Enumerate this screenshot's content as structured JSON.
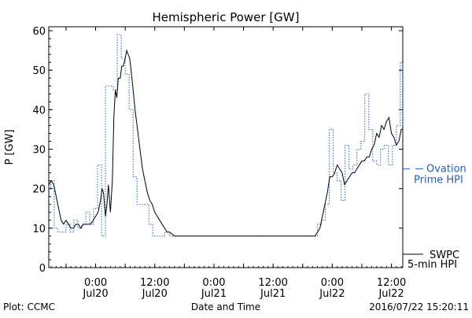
{
  "chart_data": {
    "type": "line",
    "title": "Hemispheric Power [GW]",
    "ylabel": "P [GW]",
    "xlabel": "Date and Time",
    "x_unit": "hours from 2016-07-19 00:00 UTC",
    "xlim": [
      -9.5,
      62.3
    ],
    "ylim": [
      0,
      61
    ],
    "y_ticks": [
      0,
      10,
      20,
      30,
      40,
      50,
      60
    ],
    "x_ticks": [
      {
        "x": 0,
        "time": "0:00",
        "date": "Jul20"
      },
      {
        "x": 12,
        "time": "12:00",
        "date": "Jul20"
      },
      {
        "x": 24,
        "time": "0:00",
        "date": "Jul21"
      },
      {
        "x": 36,
        "time": "12:00",
        "date": "Jul21"
      },
      {
        "x": 48,
        "time": "0:00",
        "date": "Jul22"
      },
      {
        "x": 60,
        "time": "12:00",
        "date": "Jul22"
      }
    ],
    "grid": false,
    "legend_position": "right",
    "series": [
      {
        "name": "Ovation Prime HPI",
        "legend_lines": [
          "Ovation",
          "Prime HPI"
        ],
        "style": "dotted-step",
        "color": "#2060c0",
        "marker_value": 25,
        "x": [
          -9.5,
          -9.1,
          -8.4,
          -7.6,
          -6.8,
          -6.0,
          -5.2,
          -4.4,
          -3.6,
          -2.8,
          -2.0,
          -1.2,
          -0.4,
          0.4,
          1.2,
          2.0,
          2.8,
          3.6,
          4.4,
          5.2,
          6.0,
          6.8,
          7.6,
          8.4,
          9.2,
          10.0,
          10.8,
          11.6,
          12.4,
          13.2,
          14.0,
          15.0,
          16.0,
          20,
          30,
          40,
          44.2,
          45.0,
          45.8,
          46.6,
          47.4,
          48.2,
          49.0,
          49.8,
          50.6,
          51.4,
          52.2,
          53.0,
          53.8,
          54.6,
          55.4,
          56.2,
          57.0,
          57.8,
          58.6,
          59.4,
          60.2,
          61.0,
          61.8,
          62.3
        ],
        "y": [
          20,
          22,
          10,
          9,
          9,
          11,
          9,
          12,
          10,
          11,
          14,
          11,
          15,
          26,
          8,
          46,
          46,
          45,
          59,
          53,
          49,
          40,
          23,
          16,
          16,
          16,
          11,
          8,
          8,
          8,
          9,
          8,
          8,
          8,
          8,
          8,
          8,
          11,
          12,
          16,
          35,
          24,
          22,
          17,
          31,
          25,
          26,
          30,
          32,
          44,
          35,
          27,
          26,
          30,
          31,
          26,
          31,
          36,
          52,
          36
        ]
      },
      {
        "name": "SWPC 5-min HPI",
        "legend_lines": [
          "SWPC",
          "5-min HPI"
        ],
        "style": "solid",
        "color": "#000000",
        "x": [
          -9.5,
          -9.0,
          -8.5,
          -8.0,
          -7.5,
          -7.0,
          -6.5,
          -6.0,
          -5.5,
          -5.0,
          -4.5,
          -4.0,
          -3.5,
          -3.0,
          -2.5,
          -2.0,
          -1.5,
          -1.0,
          -0.5,
          0.0,
          0.5,
          1.0,
          1.3,
          1.6,
          2.0,
          2.3,
          2.6,
          3.0,
          3.4,
          3.7,
          4.0,
          4.3,
          4.6,
          5.0,
          5.3,
          5.6,
          6.0,
          6.3,
          6.6,
          6.9,
          7.2,
          7.6,
          8.0,
          8.5,
          9.0,
          9.5,
          10.0,
          10.5,
          11.0,
          11.5,
          12.0,
          12.5,
          13.0,
          13.5,
          14.0,
          14.5,
          15.0,
          16.0,
          20,
          25,
          30,
          35,
          40,
          44.0,
          44.5,
          45.0,
          45.5,
          46.0,
          46.5,
          47.0,
          47.5,
          48.0,
          48.5,
          49.0,
          49.5,
          50.0,
          50.5,
          51.0,
          51.5,
          52.0,
          52.5,
          53.0,
          53.5,
          54.0,
          54.5,
          55.0,
          55.5,
          56.0,
          56.5,
          57.0,
          57.5,
          58.0,
          58.5,
          59.0,
          59.5,
          60.0,
          60.5,
          61.0,
          61.5,
          62.0,
          62.3
        ],
        "y": [
          21,
          22,
          21,
          18,
          15,
          12,
          11,
          12,
          11,
          10,
          10,
          11,
          11,
          10,
          11,
          11,
          11,
          11,
          12,
          13,
          14,
          17,
          20,
          19,
          13,
          16,
          21,
          14,
          22,
          38,
          45,
          43,
          48,
          48,
          51,
          51,
          53,
          55,
          54,
          53,
          50,
          45,
          40,
          35,
          30,
          25,
          22,
          19,
          17,
          16,
          14,
          13,
          12,
          11,
          10,
          9,
          9,
          8,
          8,
          8,
          8,
          8,
          8,
          8,
          8,
          9,
          10,
          13,
          16,
          19,
          23,
          23,
          24,
          26,
          25,
          24,
          21,
          22,
          23,
          24,
          24,
          25,
          26,
          27,
          27,
          28,
          28,
          30,
          31,
          34,
          33,
          36,
          35,
          37,
          38,
          34,
          33,
          31,
          32,
          35,
          35
        ]
      }
    ]
  },
  "footer": {
    "left": "Plot: CCMC",
    "center": "Date and Time",
    "right": "2016/07/22 15:20:11"
  }
}
